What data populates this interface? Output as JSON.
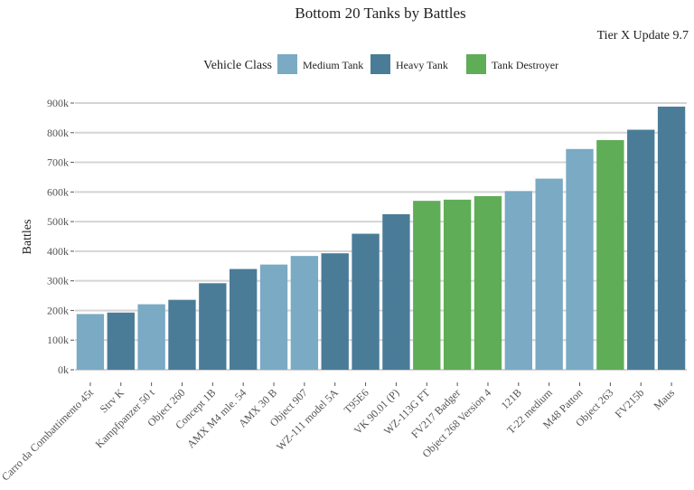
{
  "chart_data": {
    "type": "bar",
    "title": "Bottom 20 Tanks by Battles",
    "subtitle": "Tier X Update 9.7",
    "xlabel": "",
    "ylabel": "Battles",
    "ylim": [
      0,
      900000
    ],
    "yticks": [
      "0k",
      "100k",
      "200k",
      "300k",
      "400k",
      "500k",
      "600k",
      "700k",
      "800k",
      "900k"
    ],
    "grid": true,
    "legend": {
      "title": "Vehicle Class",
      "placement": "top",
      "entries": [
        {
          "name": "Medium Tank",
          "color": "#7aaac4"
        },
        {
          "name": "Heavy Tank",
          "color": "#4a7c98"
        },
        {
          "name": "Tank Destroyer",
          "color": "#5fad56"
        }
      ]
    },
    "categories": [
      "Carro da Combattimento 45t",
      "Strv K",
      "Kampfpanzer 50 t",
      "Object 260",
      "Concept 1B",
      "AMX M4 mle. 54",
      "AMX 30 B",
      "Object 907",
      "WZ-111 model 5A",
      "T95E6",
      "VK 90.01 (P)",
      "WZ-113G FT",
      "FV217 Badger",
      "Object 268 Version 4",
      "121B",
      "T-22 medium",
      "M48 Patton",
      "Object 263",
      "FV215b",
      "Maus"
    ],
    "classes": [
      "Medium Tank",
      "Heavy Tank",
      "Medium Tank",
      "Heavy Tank",
      "Heavy Tank",
      "Heavy Tank",
      "Medium Tank",
      "Medium Tank",
      "Heavy Tank",
      "Heavy Tank",
      "Heavy Tank",
      "Tank Destroyer",
      "Tank Destroyer",
      "Tank Destroyer",
      "Medium Tank",
      "Medium Tank",
      "Medium Tank",
      "Tank Destroyer",
      "Heavy Tank",
      "Heavy Tank"
    ],
    "values": [
      188000,
      193000,
      221000,
      236000,
      292000,
      340000,
      355000,
      384000,
      393000,
      459000,
      525000,
      570000,
      574000,
      586000,
      603000,
      645000,
      745000,
      775000,
      810000,
      888000
    ]
  }
}
